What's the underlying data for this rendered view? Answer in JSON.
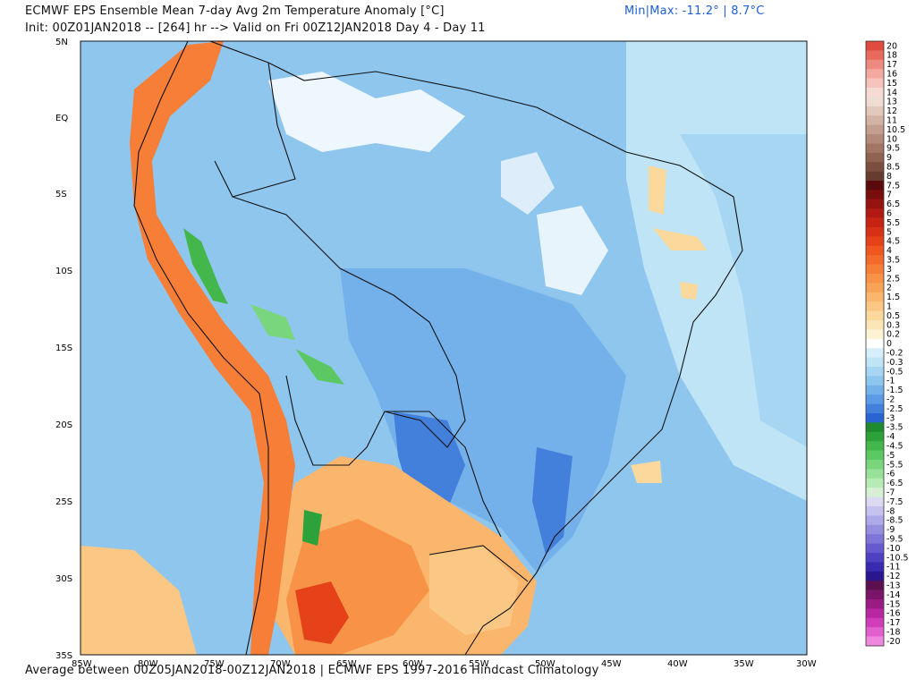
{
  "header": {
    "title": "ECMWF EPS Ensemble Mean 7-day Avg 2m Temperature Anomaly [°C]",
    "init_line": "Init: 00Z01JAN2018 -- [264] hr --> Valid on Fri 00Z12JAN2018  Day 4 - Day 11",
    "minmax": "Min|Max: -11.2° | 8.7°C"
  },
  "footer": {
    "text": "Average between 00Z05JAN2018-00Z12JAN2018 | ECMWF EPS 1997-2016 Hindcast Climatology"
  },
  "axes": {
    "lat_labels": [
      "5N",
      "EQ",
      "5S",
      "10S",
      "15S",
      "20S",
      "25S",
      "30S",
      "35S"
    ],
    "lon_labels": [
      "85W",
      "80W",
      "75W",
      "70W",
      "65W",
      "60W",
      "55W",
      "50W",
      "45W",
      "40W",
      "35W",
      "30W"
    ]
  },
  "colorbar": [
    {
      "label": "20",
      "color": "#e04a3f"
    },
    {
      "label": "18",
      "color": "#e86a5d"
    },
    {
      "label": "17",
      "color": "#ee8a80"
    },
    {
      "label": "16",
      "color": "#f3a9a0"
    },
    {
      "label": "15",
      "color": "#f6c4bd"
    },
    {
      "label": "14",
      "color": "#f8dad4"
    },
    {
      "label": "13",
      "color": "#efdcd2"
    },
    {
      "label": "12",
      "color": "#e2c9bc"
    },
    {
      "label": "11",
      "color": "#d3b3a4"
    },
    {
      "label": "10.5",
      "color": "#c39e8e"
    },
    {
      "label": "10",
      "color": "#b38a79"
    },
    {
      "label": "9.5",
      "color": "#a27665"
    },
    {
      "label": "9",
      "color": "#8f6252"
    },
    {
      "label": "8.5",
      "color": "#7b4f40"
    },
    {
      "label": "8",
      "color": "#663c2f"
    },
    {
      "label": "7.5",
      "color": "#5a0a0a"
    },
    {
      "label": "7",
      "color": "#7a0e0e"
    },
    {
      "label": "6.5",
      "color": "#961410"
    },
    {
      "label": "6",
      "color": "#b01a12"
    },
    {
      "label": "5.5",
      "color": "#c52414"
    },
    {
      "label": "5",
      "color": "#d83016"
    },
    {
      "label": "4.5",
      "color": "#e6421a"
    },
    {
      "label": "4",
      "color": "#ef5620"
    },
    {
      "label": "3.5",
      "color": "#f46a2a"
    },
    {
      "label": "3",
      "color": "#f67e36"
    },
    {
      "label": "2.5",
      "color": "#f79246"
    },
    {
      "label": "2",
      "color": "#f8a458"
    },
    {
      "label": "1.5",
      "color": "#f9b66c"
    },
    {
      "label": "1",
      "color": "#fac884"
    },
    {
      "label": "0.5",
      "color": "#fbd89c"
    },
    {
      "label": "0.3",
      "color": "#fce6b8"
    },
    {
      "label": "0.2",
      "color": "#fdf2d4"
    },
    {
      "label": "0",
      "color": "#ffffff"
    },
    {
      "label": "-0.2",
      "color": "#d6effa"
    },
    {
      "label": "-0.3",
      "color": "#bfe4f6"
    },
    {
      "label": "-0.5",
      "color": "#a6d6f2"
    },
    {
      "label": "-1",
      "color": "#8ec6ee"
    },
    {
      "label": "-1.5",
      "color": "#74b1ea"
    },
    {
      "label": "-2",
      "color": "#5b9ae4"
    },
    {
      "label": "-2.5",
      "color": "#4380dc"
    },
    {
      "label": "-3",
      "color": "#2a63d2"
    },
    {
      "label": "-3.5",
      "color": "#1f8a2e"
    },
    {
      "label": "-4",
      "color": "#2ea23a"
    },
    {
      "label": "-4.5",
      "color": "#43b64c"
    },
    {
      "label": "-5",
      "color": "#5cc863"
    },
    {
      "label": "-5.5",
      "color": "#79d67d"
    },
    {
      "label": "-6",
      "color": "#98e198"
    },
    {
      "label": "-6.5",
      "color": "#b8eab5"
    },
    {
      "label": "-7",
      "color": "#d7efd2"
    },
    {
      "label": "-7.5",
      "color": "#dcd9f2"
    },
    {
      "label": "-8",
      "color": "#c6c2ee"
    },
    {
      "label": "-8.5",
      "color": "#aea9e8"
    },
    {
      "label": "-9",
      "color": "#958fe0"
    },
    {
      "label": "-9.5",
      "color": "#7d75d8"
    },
    {
      "label": "-10",
      "color": "#655bce"
    },
    {
      "label": "-10.5",
      "color": "#4e41c2"
    },
    {
      "label": "-11",
      "color": "#3a2ab2"
    },
    {
      "label": "-12",
      "color": "#2a178f"
    },
    {
      "label": "-13",
      "color": "#5a0f4e"
    },
    {
      "label": "-14",
      "color": "#7a1468"
    },
    {
      "label": "-15",
      "color": "#9a1b84"
    },
    {
      "label": "-16",
      "color": "#b826a0"
    },
    {
      "label": "-17",
      "color": "#d03cba"
    },
    {
      "label": "-18",
      "color": "#e25fce"
    },
    {
      "label": "-20",
      "color": "#ee88de"
    }
  ]
}
